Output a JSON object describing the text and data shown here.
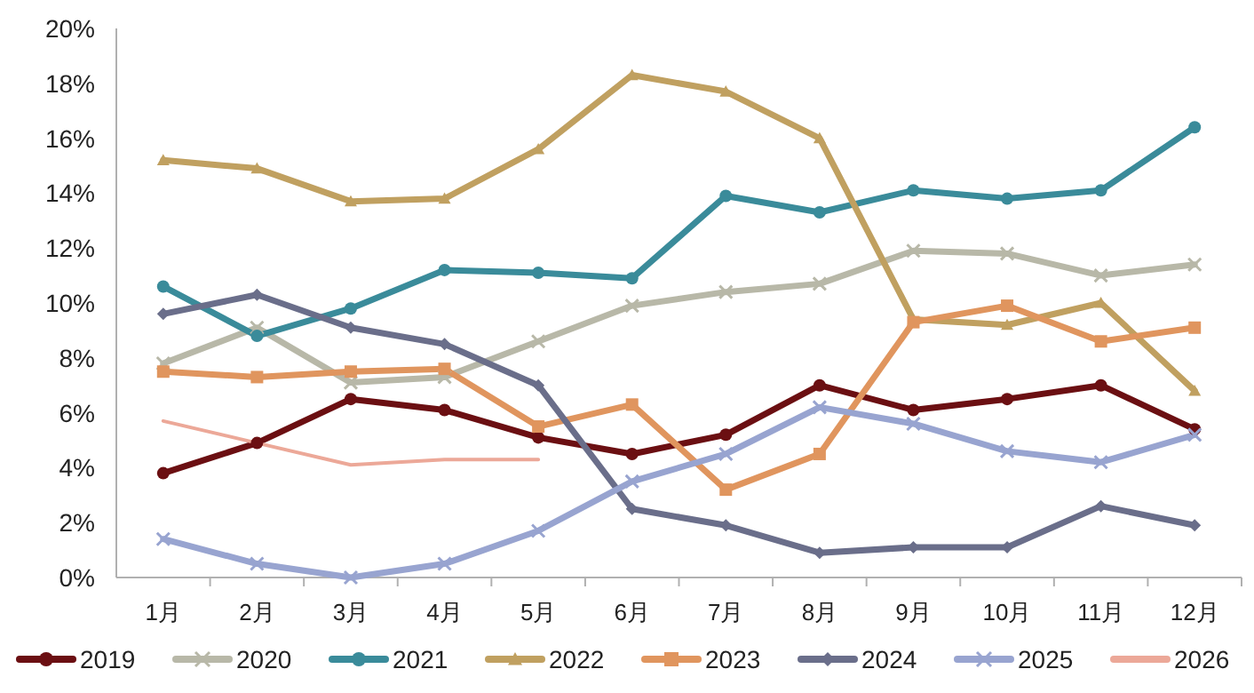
{
  "chart_data": {
    "type": "line",
    "categories": [
      "1月",
      "2月",
      "3月",
      "4月",
      "5月",
      "6月",
      "7月",
      "8月",
      "9月",
      "10月",
      "11月",
      "12月"
    ],
    "series": [
      {
        "name": "2019",
        "color": "#6b0f12",
        "marker": "circle",
        "values": [
          3.8,
          4.9,
          6.5,
          6.1,
          5.1,
          4.5,
          5.2,
          7.0,
          6.1,
          6.5,
          7.0,
          5.4
        ]
      },
      {
        "name": "2020",
        "color": "#b8b8a8",
        "marker": "cross",
        "values": [
          7.8,
          9.1,
          7.1,
          7.3,
          8.6,
          9.9,
          10.4,
          10.7,
          11.9,
          11.8,
          11.0,
          11.4
        ]
      },
      {
        "name": "2021",
        "color": "#3a8b9a",
        "marker": "circle",
        "values": [
          10.6,
          8.8,
          9.8,
          11.2,
          11.1,
          10.9,
          13.9,
          13.3,
          14.1,
          13.8,
          14.1,
          16.4
        ]
      },
      {
        "name": "2022",
        "color": "#c0a060",
        "marker": "triangle",
        "values": [
          15.2,
          14.9,
          13.7,
          13.8,
          15.6,
          18.3,
          17.7,
          16.0,
          9.4,
          9.2,
          10.0,
          6.8
        ]
      },
      {
        "name": "2023",
        "color": "#e0955e",
        "marker": "square",
        "values": [
          7.5,
          7.3,
          7.5,
          7.6,
          5.5,
          6.3,
          3.2,
          4.5,
          9.3,
          9.9,
          8.6,
          9.1
        ]
      },
      {
        "name": "2024",
        "color": "#6a6e8a",
        "marker": "diamond",
        "values": [
          9.6,
          10.3,
          9.1,
          8.5,
          7.0,
          2.5,
          1.9,
          0.9,
          1.1,
          1.1,
          2.6,
          1.9
        ]
      },
      {
        "name": "2025",
        "color": "#98a4d0",
        "marker": "cross",
        "values": [
          1.4,
          0.5,
          0.0,
          0.5,
          1.7,
          3.5,
          4.5,
          6.2,
          5.6,
          4.6,
          4.2,
          5.2
        ]
      },
      {
        "name": "2026",
        "color": "#eca898",
        "marker": "none",
        "values": [
          5.7,
          4.9,
          4.1,
          4.3,
          4.3,
          null,
          null,
          null,
          null,
          null,
          null,
          null
        ]
      }
    ],
    "ylim": [
      0,
      20
    ],
    "yticks": [
      {
        "value": 0,
        "label": "0%"
      },
      {
        "value": 2,
        "label": "2%"
      },
      {
        "value": 4,
        "label": "4%"
      },
      {
        "value": 6,
        "label": "6%"
      },
      {
        "value": 8,
        "label": "8%"
      },
      {
        "value": 10,
        "label": "10%"
      },
      {
        "value": 12,
        "label": "12%"
      },
      {
        "value": 14,
        "label": "14%"
      },
      {
        "value": 16,
        "label": "16%"
      },
      {
        "value": 18,
        "label": "18%"
      },
      {
        "value": 20,
        "label": "20%"
      }
    ],
    "grid": false,
    "legend": "bottom"
  }
}
